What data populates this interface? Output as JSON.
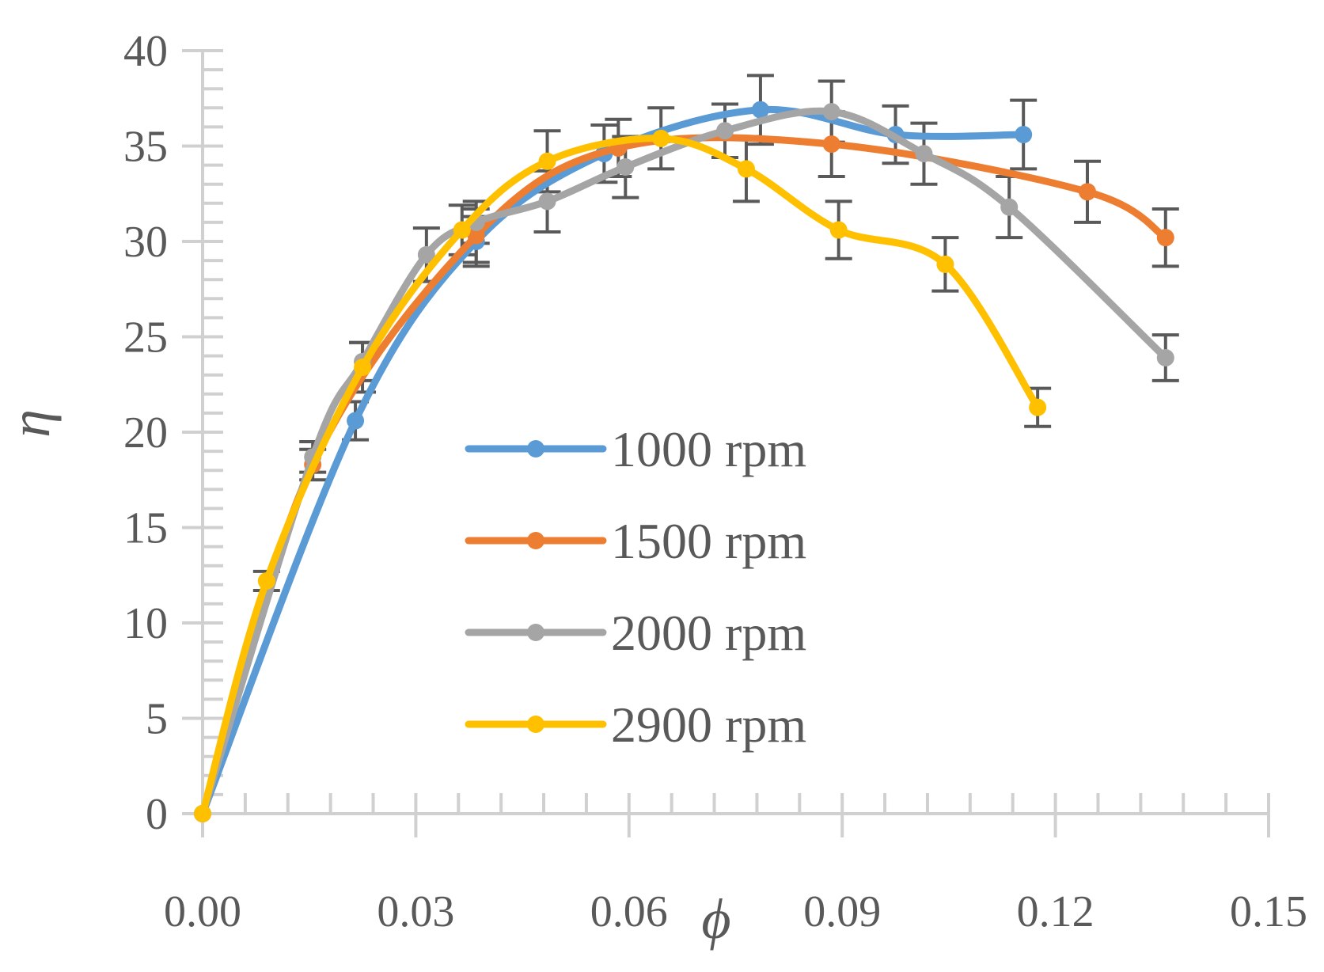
{
  "chart_data": {
    "type": "line",
    "title": "",
    "xlabel": "ϕ",
    "ylabel": "η",
    "xlim": [
      0,
      0.15
    ],
    "ylim": [
      0,
      40
    ],
    "xticks": [
      "0.00",
      "0.03",
      "0.06",
      "0.09",
      "0.12",
      "0.15"
    ],
    "xtick_values": [
      0,
      0.03,
      0.06,
      0.09,
      0.12,
      0.15
    ],
    "yticks": [
      "0",
      "5",
      "10",
      "15",
      "20",
      "25",
      "30",
      "35",
      "40"
    ],
    "ytick_values": [
      0,
      5,
      10,
      15,
      20,
      25,
      30,
      35,
      40
    ],
    "grid": false,
    "legend_position": "center",
    "series": [
      {
        "name": "1000 rpm",
        "color": "#5b9bd5",
        "points": [
          {
            "x": 0.0,
            "y": 0.0,
            "err": 0
          },
          {
            "x": 0.0215,
            "y": 20.6,
            "err": 1.0
          },
          {
            "x": 0.0385,
            "y": 30.0,
            "err": 1.3
          },
          {
            "x": 0.0565,
            "y": 34.6,
            "err": 1.5
          },
          {
            "x": 0.0785,
            "y": 36.9,
            "err": 1.8
          },
          {
            "x": 0.0975,
            "y": 35.6,
            "err": 1.5
          },
          {
            "x": 0.1155,
            "y": 35.6,
            "err": 1.8
          }
        ]
      },
      {
        "name": "1500 rpm",
        "color": "#ed7d31",
        "points": [
          {
            "x": 0.0,
            "y": 0.0,
            "err": 0
          },
          {
            "x": 0.0155,
            "y": 18.3,
            "err": 0.8
          },
          {
            "x": 0.0385,
            "y": 30.3,
            "err": 1.4
          },
          {
            "x": 0.0585,
            "y": 34.9,
            "err": 1.5
          },
          {
            "x": 0.0885,
            "y": 35.1,
            "err": 1.7
          },
          {
            "x": 0.1245,
            "y": 32.6,
            "err": 1.6
          },
          {
            "x": 0.1355,
            "y": 30.2,
            "err": 1.5
          }
        ]
      },
      {
        "name": "2000 rpm",
        "color": "#a5a5a5",
        "points": [
          {
            "x": 0.0,
            "y": 0.0,
            "err": 0
          },
          {
            "x": 0.0155,
            "y": 18.7,
            "err": 0.8
          },
          {
            "x": 0.0225,
            "y": 23.7,
            "err": 1.0
          },
          {
            "x": 0.0315,
            "y": 29.3,
            "err": 1.4
          },
          {
            "x": 0.0385,
            "y": 31.0,
            "err": 1.1
          },
          {
            "x": 0.0485,
            "y": 32.1,
            "err": 1.6
          },
          {
            "x": 0.0595,
            "y": 33.9,
            "err": 1.6
          },
          {
            "x": 0.0735,
            "y": 35.8,
            "err": 1.4
          },
          {
            "x": 0.0885,
            "y": 36.8,
            "err": 1.6
          },
          {
            "x": 0.1015,
            "y": 34.6,
            "err": 1.6
          },
          {
            "x": 0.1135,
            "y": 31.8,
            "err": 1.6
          },
          {
            "x": 0.1355,
            "y": 23.9,
            "err": 1.2
          }
        ]
      },
      {
        "name": "2900 rpm",
        "color": "#ffc000",
        "points": [
          {
            "x": 0.0,
            "y": 0.0,
            "err": 0
          },
          {
            "x": 0.009,
            "y": 12.2,
            "err": 0.5
          },
          {
            "x": 0.0225,
            "y": 23.4,
            "err": 1.3
          },
          {
            "x": 0.0365,
            "y": 30.6,
            "err": 1.3
          },
          {
            "x": 0.0485,
            "y": 34.2,
            "err": 1.6
          },
          {
            "x": 0.0645,
            "y": 35.4,
            "err": 1.6
          },
          {
            "x": 0.0765,
            "y": 33.8,
            "err": 1.7
          },
          {
            "x": 0.0895,
            "y": 30.6,
            "err": 1.5
          },
          {
            "x": 0.1045,
            "y": 28.8,
            "err": 1.4
          },
          {
            "x": 0.1175,
            "y": 21.3,
            "err": 1.0
          }
        ]
      }
    ]
  }
}
